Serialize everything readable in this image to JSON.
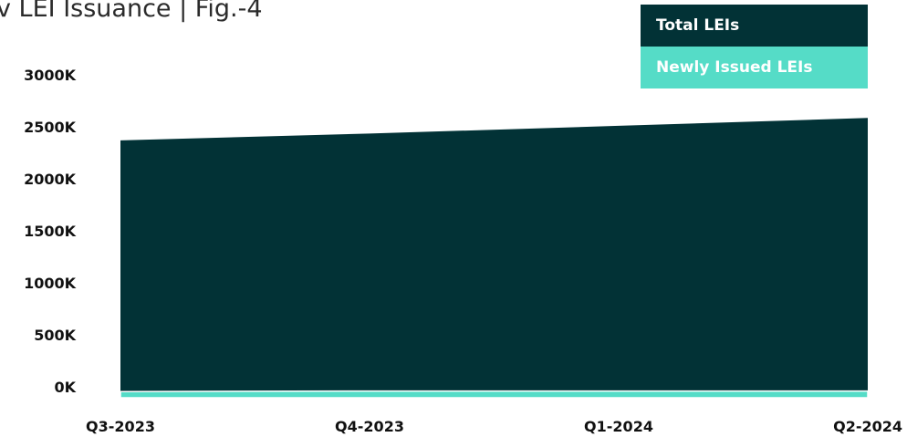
{
  "chart_data": {
    "type": "area",
    "title": "v LEI Issuance | Fig.-4",
    "xlabel": "",
    "ylabel": "",
    "categories": [
      "Q3-2023",
      "Q4-2023",
      "Q1-2024",
      "Q2-2024"
    ],
    "ylim": [
      0,
      3000
    ],
    "y_ticks": [
      0,
      500,
      1000,
      1500,
      2000,
      2500,
      3000
    ],
    "y_tick_labels": [
      "0K",
      "500K",
      "1000K",
      "1500K",
      "2000K",
      "2500K",
      "3000K"
    ],
    "series": [
      {
        "name": "Total LEIs",
        "values": [
          2475,
          2540,
          2615,
          2690
        ],
        "color": "#023236"
      },
      {
        "name": "Newly Issued LEIs",
        "values": [
          60,
          65,
          65,
          65
        ],
        "color": "#55dcc7"
      }
    ],
    "grid": false,
    "legend_position": "top-right"
  }
}
